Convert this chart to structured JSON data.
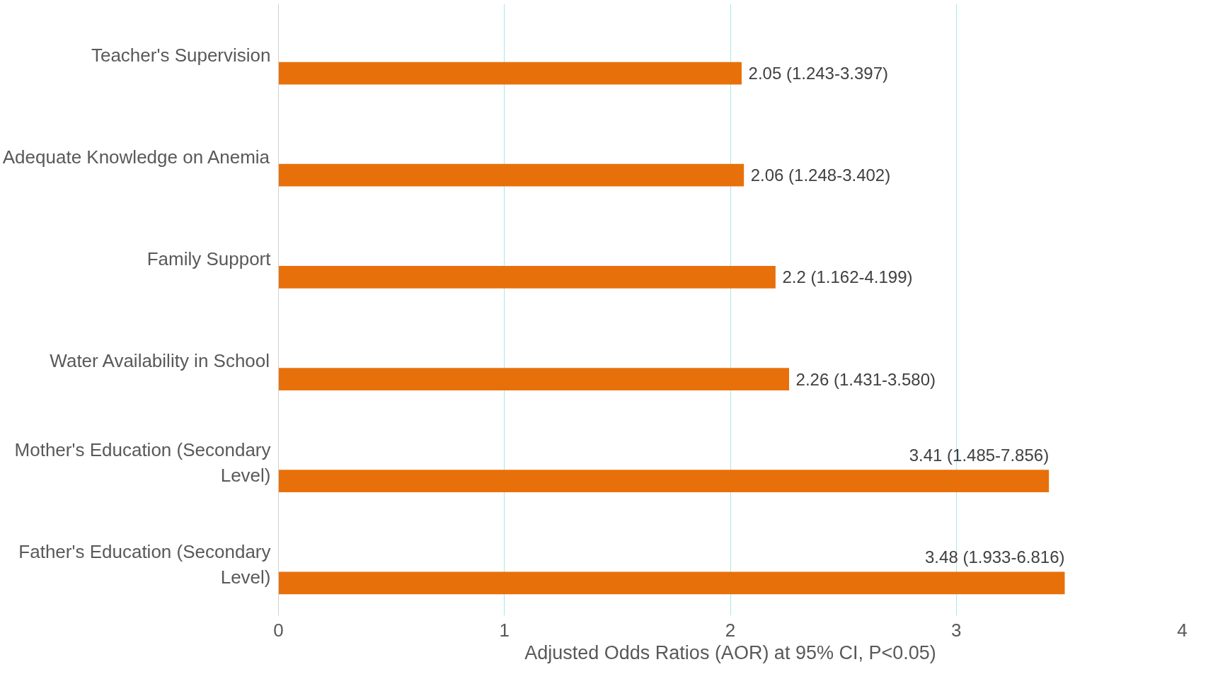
{
  "chart_data": {
    "type": "bar",
    "orientation": "horizontal",
    "xlabel": "Adjusted Odds Ratios (AOR) at 95% CI, P<0.05)",
    "categories": [
      "Teacher's Supervision",
      "Adequate Knowledge on Anemia",
      "Family Support",
      "Water Availability in School",
      "Mother's Education (Secondary Level)",
      "Father's Education (Secondary Level)"
    ],
    "values": [
      2.05,
      2.06,
      2.2,
      2.26,
      3.41,
      3.48
    ],
    "value_labels": [
      "2.05 (1.243-3.397)",
      "2.06 (1.248-3.402)",
      "2.2 (1.162-4.199)",
      "2.26 (1.431-3.580)",
      "3.41 (1.485-7.856)",
      "3.48 (1.933-6.816)"
    ],
    "color": "#e8700a",
    "xlim": [
      0,
      4
    ],
    "xticks": [
      0,
      1,
      2,
      3,
      4
    ],
    "grid": "x"
  }
}
